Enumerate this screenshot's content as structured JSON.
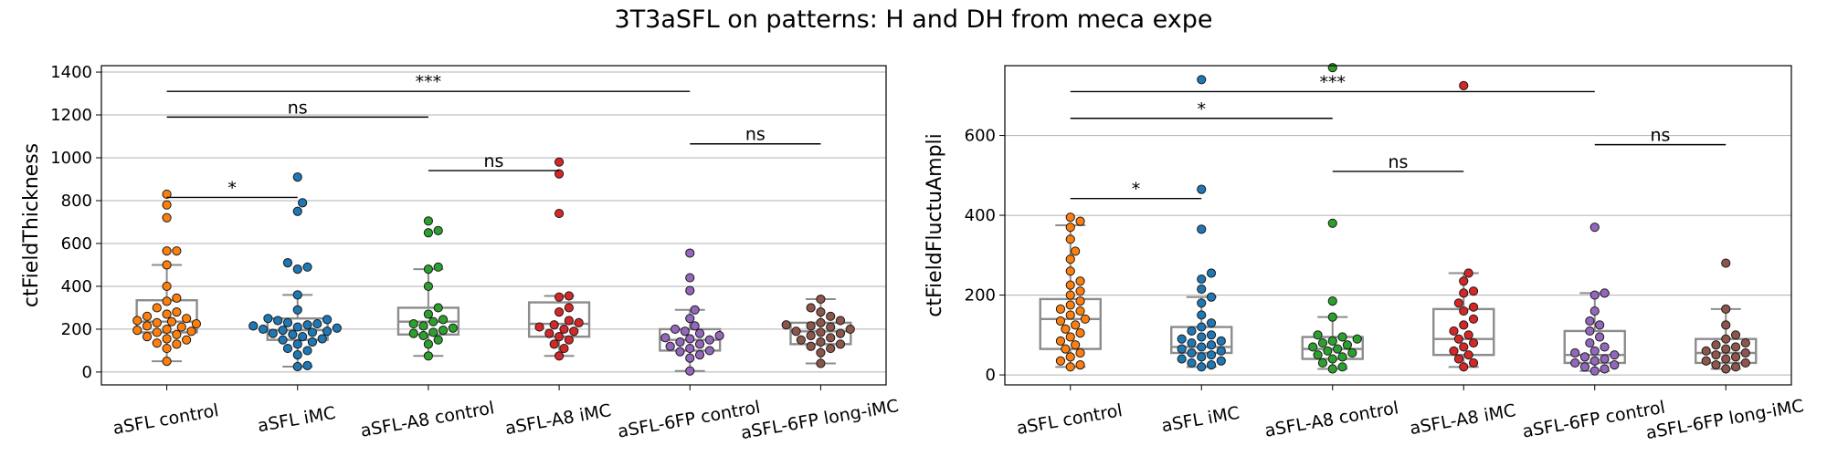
{
  "page": {
    "title": "3T3aSFL on patterns: H and DH from meca expe"
  },
  "palette": {
    "frame": "#000000",
    "grid": "#b0b0b0",
    "box": "#8c8c8c",
    "categories": [
      "#ff7f0e",
      "#1f77b4",
      "#2ca02c",
      "#d62728",
      "#9467bd",
      "#8c564b"
    ]
  },
  "chart_data": [
    {
      "type": "box-swarm",
      "ylabel": "ctFieldThickness",
      "ylim": [
        -60,
        1430
      ],
      "yticks": [
        0,
        200,
        400,
        600,
        800,
        1000,
        1200,
        1400
      ],
      "grid": "horizontal",
      "categories": [
        "aSFL control",
        "aSFL iMC",
        "aSFL-A8 control",
        "aSFL-A8 iMC",
        "aSFL-6FP control",
        "aSFL-6FP long-iMC"
      ],
      "boxes": [
        {
          "whislo": 50,
          "q1": 185,
          "med": 235,
          "q3": 335,
          "whishi": 500
        },
        {
          "whislo": 25,
          "q1": 150,
          "med": 195,
          "q3": 250,
          "whishi": 360
        },
        {
          "whislo": 75,
          "q1": 175,
          "med": 235,
          "q3": 300,
          "whishi": 480
        },
        {
          "whislo": 75,
          "q1": 165,
          "med": 225,
          "q3": 325,
          "whishi": 355
        },
        {
          "whislo": 5,
          "q1": 100,
          "med": 150,
          "q3": 200,
          "whishi": 290
        },
        {
          "whislo": 40,
          "q1": 130,
          "med": 190,
          "q3": 230,
          "whishi": 340
        }
      ],
      "points": [
        [
          50,
          110,
          130,
          135,
          150,
          155,
          165,
          175,
          185,
          190,
          195,
          200,
          210,
          215,
          225,
          230,
          235,
          240,
          250,
          260,
          270,
          280,
          300,
          330,
          345,
          400,
          500,
          565,
          565,
          720,
          780,
          830
        ],
        [
          25,
          30,
          80,
          100,
          110,
          130,
          140,
          150,
          155,
          165,
          175,
          180,
          185,
          190,
          195,
          200,
          205,
          210,
          215,
          220,
          225,
          230,
          240,
          245,
          250,
          290,
          360,
          480,
          490,
          510,
          750,
          790,
          910
        ],
        [
          75,
          130,
          150,
          170,
          180,
          185,
          195,
          205,
          215,
          225,
          235,
          245,
          270,
          300,
          400,
          480,
          490,
          650,
          660,
          705
        ],
        [
          75,
          110,
          130,
          150,
          165,
          180,
          190,
          200,
          210,
          220,
          230,
          240,
          280,
          300,
          350,
          355,
          740,
          925,
          980
        ],
        [
          5,
          65,
          80,
          95,
          100,
          110,
          120,
          130,
          140,
          150,
          155,
          160,
          170,
          180,
          190,
          200,
          215,
          250,
          290,
          380,
          440,
          555
        ],
        [
          40,
          90,
          110,
          120,
          130,
          140,
          150,
          160,
          170,
          180,
          185,
          190,
          200,
          210,
          215,
          220,
          230,
          240,
          260,
          280,
          300,
          340
        ]
      ],
      "annotations": [
        {
          "i": 0,
          "j": 1,
          "y": 815,
          "label": "*"
        },
        {
          "i": 2,
          "j": 3,
          "y": 940,
          "label": "ns"
        },
        {
          "i": 0,
          "j": 2,
          "y": 1190,
          "label": "ns"
        },
        {
          "i": 0,
          "j": 4,
          "y": 1310,
          "label": "***"
        },
        {
          "i": 4,
          "j": 5,
          "y": 1065,
          "label": "ns"
        }
      ]
    },
    {
      "type": "box-swarm",
      "ylabel": "ctFieldFluctuAmpli",
      "ylim": [
        -25,
        775
      ],
      "yticks": [
        0,
        200,
        400,
        600
      ],
      "grid": "horizontal",
      "categories": [
        "aSFL control",
        "aSFL iMC",
        "aSFL-A8 control",
        "aSFL-A8 iMC",
        "aSFL-6FP control",
        "aSFL-6FP long-iMC"
      ],
      "boxes": [
        {
          "whislo": 20,
          "q1": 65,
          "med": 140,
          "q3": 190,
          "whishi": 375
        },
        {
          "whislo": 20,
          "q1": 55,
          "med": 70,
          "q3": 120,
          "whishi": 195
        },
        {
          "whislo": 15,
          "q1": 40,
          "med": 65,
          "q3": 95,
          "whishi": 145
        },
        {
          "whislo": 20,
          "q1": 50,
          "med": 90,
          "q3": 165,
          "whishi": 255
        },
        {
          "whislo": 10,
          "q1": 30,
          "med": 50,
          "q3": 110,
          "whishi": 205
        },
        {
          "whislo": 15,
          "q1": 30,
          "med": 55,
          "q3": 90,
          "whishi": 165
        }
      ],
      "points": [
        [
          20,
          25,
          35,
          45,
          55,
          65,
          75,
          85,
          95,
          105,
          115,
          125,
          135,
          140,
          150,
          160,
          165,
          175,
          185,
          200,
          210,
          225,
          235,
          260,
          290,
          310,
          340,
          370,
          385,
          395
        ],
        [
          20,
          25,
          30,
          35,
          40,
          45,
          50,
          55,
          60,
          65,
          70,
          75,
          80,
          85,
          90,
          95,
          100,
          110,
          120,
          130,
          150,
          180,
          195,
          215,
          240,
          255,
          365,
          465,
          740
        ],
        [
          15,
          20,
          30,
          40,
          45,
          50,
          55,
          60,
          65,
          70,
          75,
          80,
          85,
          90,
          95,
          100,
          145,
          185,
          380,
          770
        ],
        [
          20,
          30,
          40,
          50,
          60,
          70,
          80,
          90,
          100,
          110,
          125,
          140,
          160,
          170,
          180,
          205,
          210,
          235,
          255,
          725
        ],
        [
          10,
          15,
          20,
          25,
          30,
          35,
          40,
          45,
          50,
          55,
          60,
          70,
          80,
          95,
          110,
          125,
          135,
          160,
          200,
          205,
          370
        ],
        [
          15,
          20,
          25,
          30,
          35,
          40,
          45,
          50,
          55,
          60,
          65,
          70,
          75,
          80,
          90,
          100,
          125,
          165,
          280
        ]
      ],
      "annotations": [
        {
          "i": 0,
          "j": 1,
          "y": 442,
          "label": "*"
        },
        {
          "i": 2,
          "j": 3,
          "y": 510,
          "label": "ns"
        },
        {
          "i": 0,
          "j": 2,
          "y": 643,
          "label": "*"
        },
        {
          "i": 0,
          "j": 4,
          "y": 710,
          "label": "***"
        },
        {
          "i": 4,
          "j": 5,
          "y": 577,
          "label": "ns"
        }
      ]
    }
  ]
}
